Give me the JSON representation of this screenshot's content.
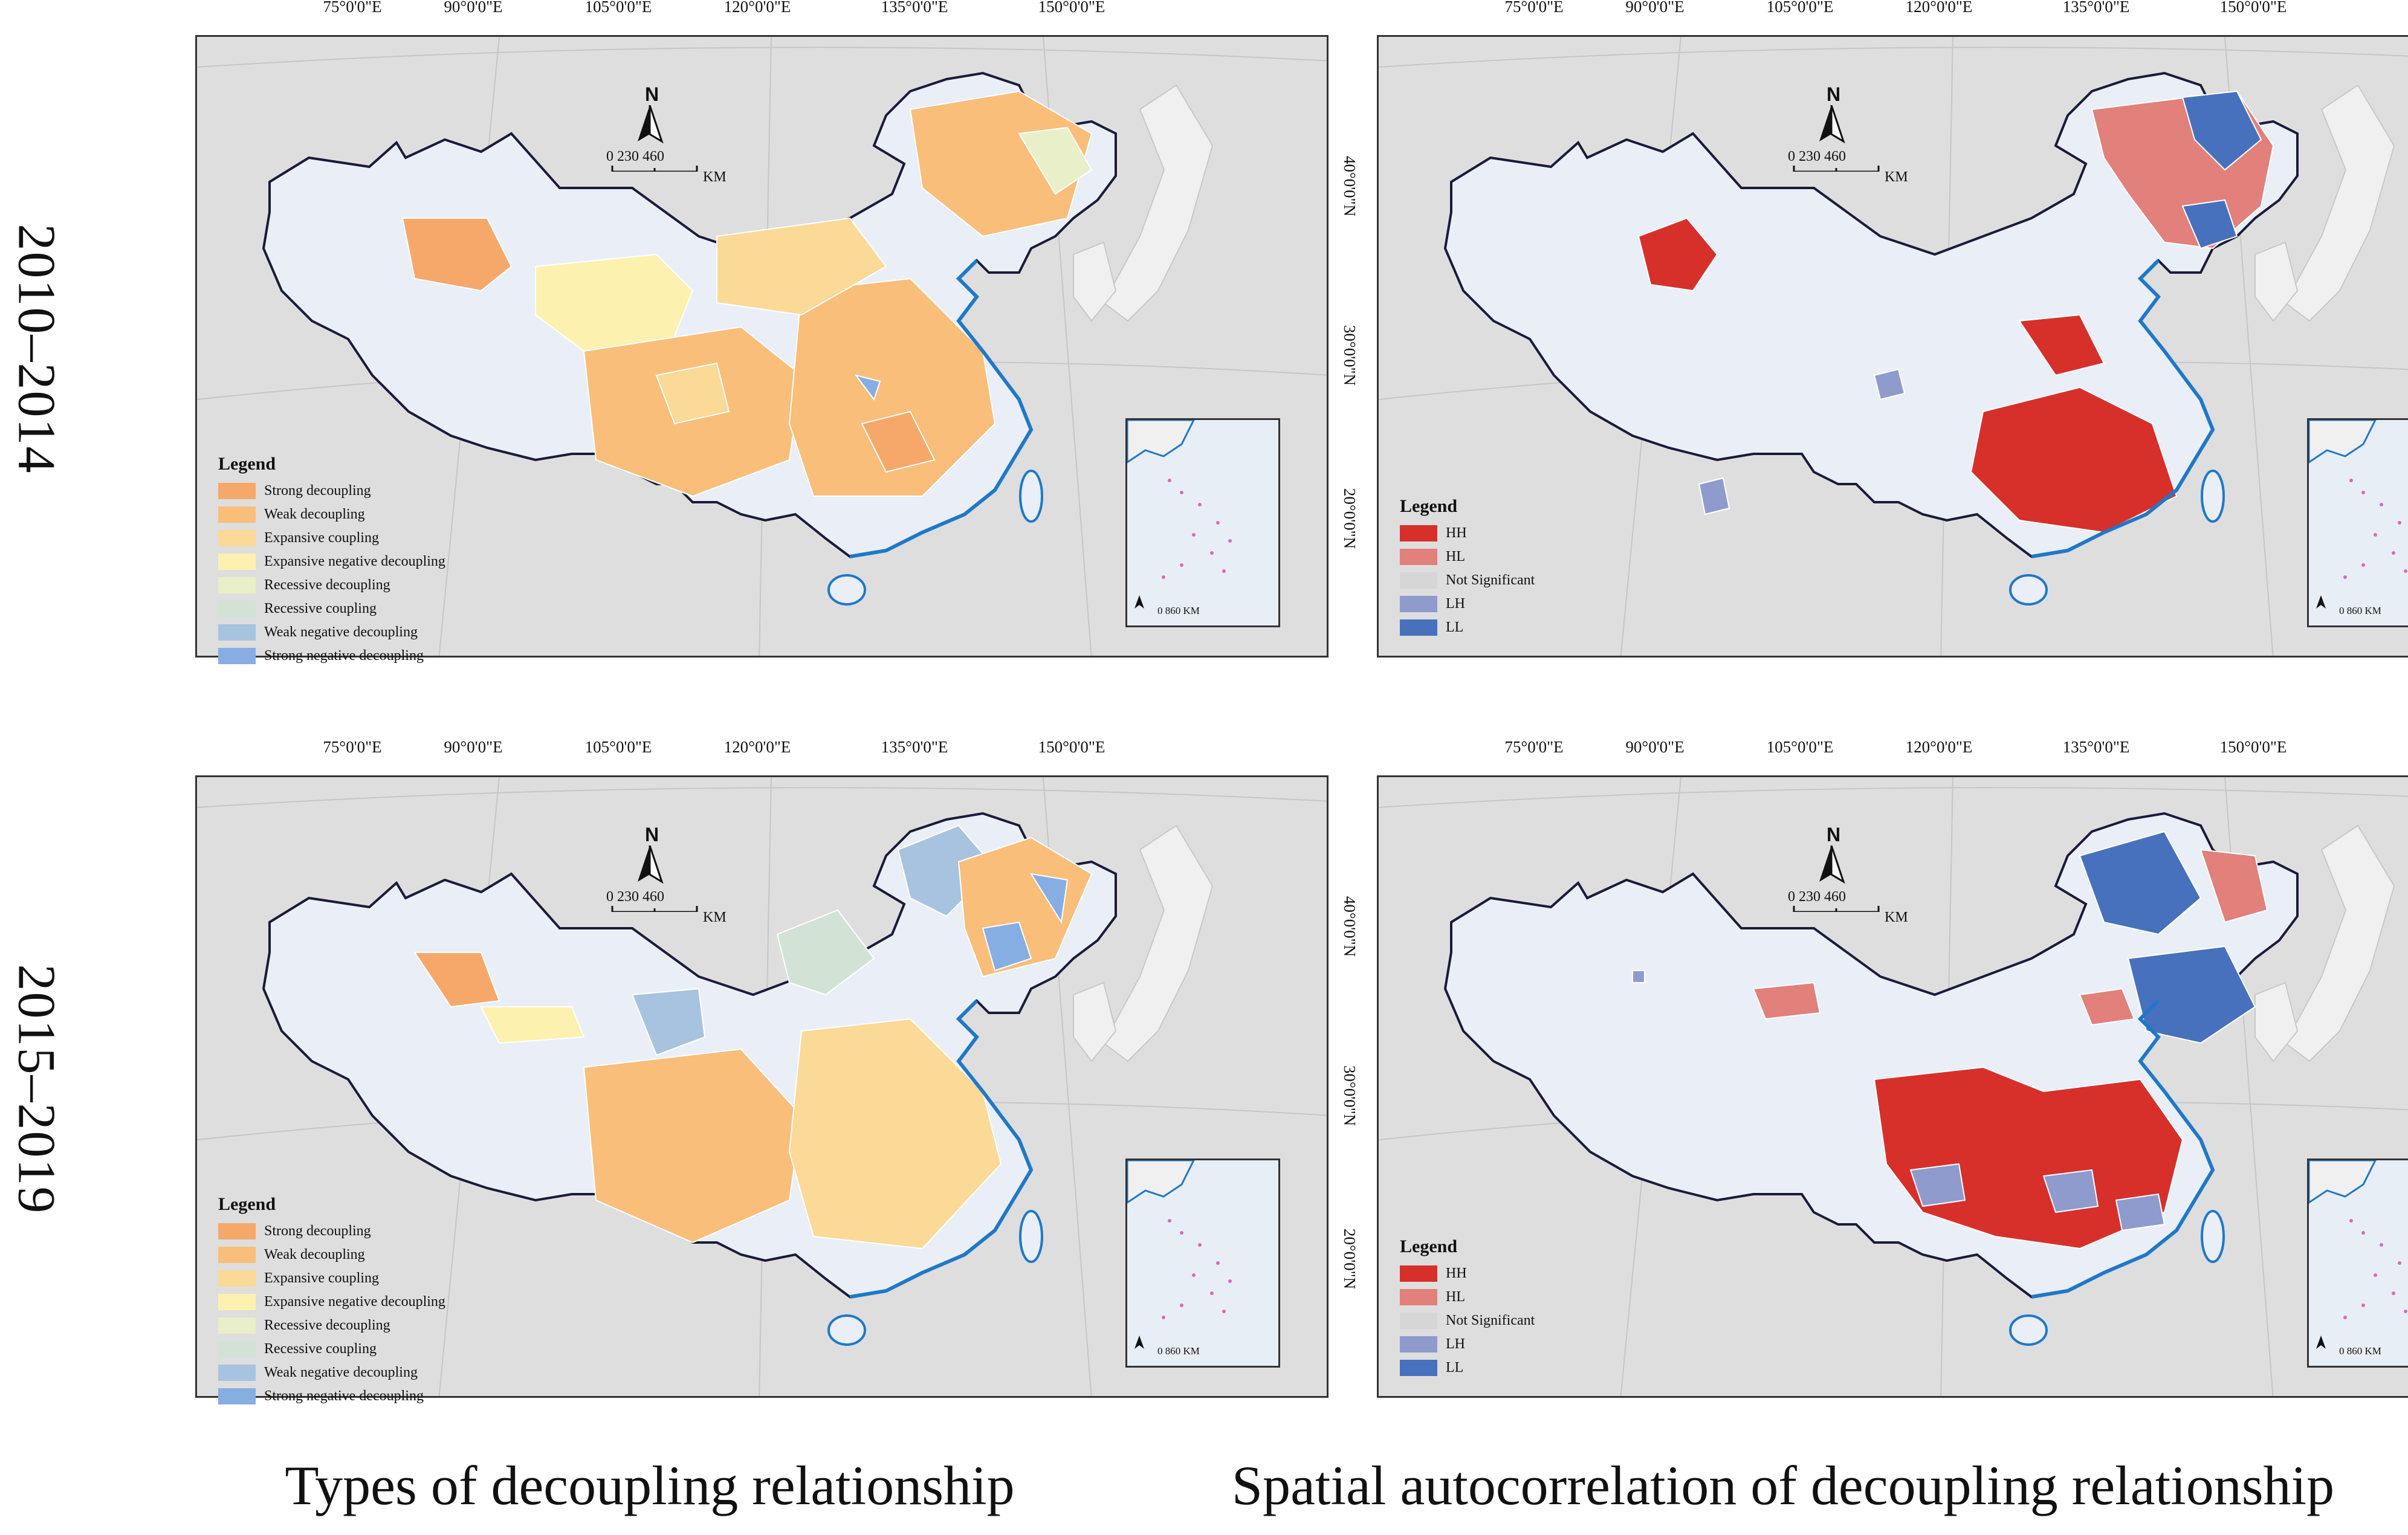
{
  "rows": [
    {
      "label": "2010–2014"
    },
    {
      "label": "2015–2019"
    }
  ],
  "columns": [
    {
      "label": "Types of decoupling relationship"
    },
    {
      "label": "Spatial autocorrelation of decoupling relationship"
    }
  ],
  "lon_ticks": [
    "75°0'0\"E",
    "90°0'0\"E",
    "105°0'0\"E",
    "120°0'0\"E",
    "135°0'0\"E",
    "150°0'0\"E"
  ],
  "lat_ticks": [
    "40°0'0\"N",
    "30°0'0\"N",
    "20°0'0\"N"
  ],
  "north_label": "N",
  "scale": {
    "values": [
      "0",
      "230",
      "460"
    ],
    "unit": "KM"
  },
  "inset_scale": {
    "values": [
      "0",
      "860"
    ],
    "unit": "KM"
  },
  "legend_types": {
    "title": "Legend",
    "items": [
      {
        "label": "Strong decoupling",
        "color": "#f6a86b"
      },
      {
        "label": "Weak decoupling",
        "color": "#f9be7a"
      },
      {
        "label": "Expansive coupling",
        "color": "#fbd996"
      },
      {
        "label": "Expansive negative decoupling",
        "color": "#fdf1b0"
      },
      {
        "label": "Recessive decoupling",
        "color": "#e9efc8"
      },
      {
        "label": "Recessive coupling",
        "color": "#d2e3d6"
      },
      {
        "label": "Weak negative decoupling",
        "color": "#a8c3df"
      },
      {
        "label": "Strong negative decoupling",
        "color": "#86aee2"
      }
    ]
  },
  "legend_lisa": {
    "title": "Legend",
    "items": [
      {
        "label": "HH",
        "color": "#d7302b"
      },
      {
        "label": "HL",
        "color": "#e2807b"
      },
      {
        "label": "Not Significant",
        "color": "#d6d6d6"
      },
      {
        "label": "LH",
        "color": "#8f9bcd"
      },
      {
        "label": "LL",
        "color": "#4771bd"
      }
    ]
  },
  "colors": {
    "background": "#dedede",
    "land_other": "#eaeff7",
    "border": "#1a1a3a",
    "coast": "#1f78c8"
  }
}
